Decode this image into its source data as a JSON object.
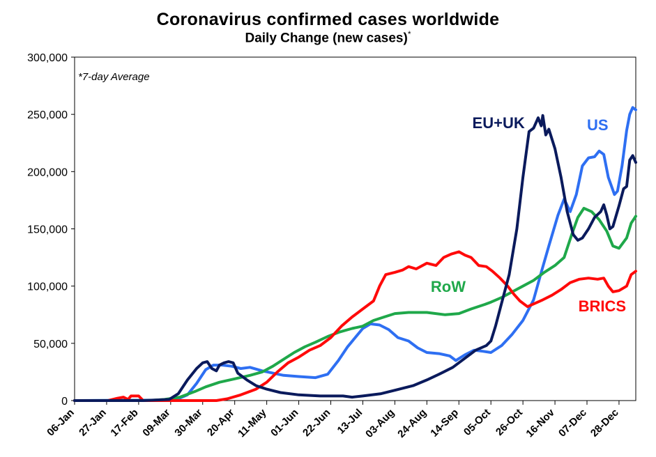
{
  "title": "Coronavirus confirmed cases worldwide",
  "subtitle": "Daily Change (new cases)",
  "subtitle_mark": "*",
  "note": "*7-day Average",
  "chart_data": {
    "type": "line",
    "title": "Coronavirus confirmed cases worldwide",
    "subtitle": "Daily Change (new cases)*",
    "annotation": "*7-day Average",
    "ylim": [
      0,
      300000
    ],
    "yticks": [
      0,
      50000,
      100000,
      150000,
      200000,
      250000,
      300000
    ],
    "ytick_labels": [
      "0",
      "50,000",
      "100,000",
      "150,000",
      "200,000",
      "250,000",
      "300,000"
    ],
    "xlim": [
      "2020-01-06",
      "2021-01-08"
    ],
    "xticks": [
      "2020-01-06",
      "2020-01-27",
      "2020-02-17",
      "2020-03-09",
      "2020-03-30",
      "2020-04-20",
      "2020-05-11",
      "2020-06-01",
      "2020-06-22",
      "2020-07-13",
      "2020-08-03",
      "2020-08-24",
      "2020-09-14",
      "2020-10-05",
      "2020-10-26",
      "2020-11-16",
      "2020-12-07",
      "2020-12-28"
    ],
    "xtick_labels": [
      "06-Jan",
      "27-Jan",
      "17-Feb",
      "09-Mar",
      "30-Mar",
      "20-Apr",
      "11-May",
      "01-Jun",
      "22-Jun",
      "13-Jul",
      "03-Aug",
      "24-Aug",
      "14-Sep",
      "05-Oct",
      "26-Oct",
      "16-Nov",
      "07-Dec",
      "28-Dec"
    ],
    "grid": false,
    "legend": "none (series labelled directly on chart)",
    "series": [
      {
        "name": "EU+UK",
        "color": "#0a1a5c",
        "points": [
          [
            "2020-01-06",
            0
          ],
          [
            "2020-02-20",
            0
          ],
          [
            "2020-03-08",
            1000
          ],
          [
            "2020-03-14",
            6000
          ],
          [
            "2020-03-20",
            18000
          ],
          [
            "2020-03-26",
            28000
          ],
          [
            "2020-03-30",
            33000
          ],
          [
            "2020-04-02",
            34000
          ],
          [
            "2020-04-05",
            28000
          ],
          [
            "2020-04-08",
            26000
          ],
          [
            "2020-04-10",
            31000
          ],
          [
            "2020-04-13",
            33000
          ],
          [
            "2020-04-16",
            34000
          ],
          [
            "2020-04-19",
            33000
          ],
          [
            "2020-04-22",
            24000
          ],
          [
            "2020-04-28",
            18000
          ],
          [
            "2020-05-04",
            13000
          ],
          [
            "2020-05-11",
            10000
          ],
          [
            "2020-05-20",
            7000
          ],
          [
            "2020-06-01",
            5000
          ],
          [
            "2020-06-15",
            4000
          ],
          [
            "2020-06-30",
            4000
          ],
          [
            "2020-07-06",
            3000
          ],
          [
            "2020-07-13",
            4000
          ],
          [
            "2020-07-25",
            6000
          ],
          [
            "2020-08-03",
            9000
          ],
          [
            "2020-08-15",
            13000
          ],
          [
            "2020-08-24",
            18000
          ],
          [
            "2020-09-01",
            23000
          ],
          [
            "2020-09-10",
            29000
          ],
          [
            "2020-09-18",
            37000
          ],
          [
            "2020-09-25",
            44000
          ],
          [
            "2020-10-02",
            48000
          ],
          [
            "2020-10-05",
            52000
          ],
          [
            "2020-10-08",
            65000
          ],
          [
            "2020-10-12",
            85000
          ],
          [
            "2020-10-17",
            110000
          ],
          [
            "2020-10-22",
            150000
          ],
          [
            "2020-10-26",
            195000
          ],
          [
            "2020-10-30",
            235000
          ],
          [
            "2020-11-02",
            238000
          ],
          [
            "2020-11-05",
            247000
          ],
          [
            "2020-11-07",
            240000
          ],
          [
            "2020-11-08",
            249000
          ],
          [
            "2020-11-10",
            232000
          ],
          [
            "2020-11-12",
            237000
          ],
          [
            "2020-11-16",
            220000
          ],
          [
            "2020-11-20",
            195000
          ],
          [
            "2020-11-24",
            165000
          ],
          [
            "2020-11-28",
            145000
          ],
          [
            "2020-12-01",
            140000
          ],
          [
            "2020-12-04",
            142000
          ],
          [
            "2020-12-08",
            150000
          ],
          [
            "2020-12-12",
            160000
          ],
          [
            "2020-12-16",
            165000
          ],
          [
            "2020-12-18",
            171000
          ],
          [
            "2020-12-20",
            162000
          ],
          [
            "2020-12-22",
            150000
          ],
          [
            "2020-12-24",
            152000
          ],
          [
            "2020-12-28",
            170000
          ],
          [
            "2020-12-31",
            185000
          ],
          [
            "2021-01-02",
            187000
          ],
          [
            "2021-01-04",
            210000
          ],
          [
            "2021-01-06",
            214000
          ],
          [
            "2021-01-08",
            208000
          ]
        ]
      },
      {
        "name": "US",
        "color": "#2e6ff2",
        "points": [
          [
            "2020-01-06",
            0
          ],
          [
            "2020-03-12",
            500
          ],
          [
            "2020-03-20",
            5000
          ],
          [
            "2020-03-26",
            15000
          ],
          [
            "2020-04-01",
            27000
          ],
          [
            "2020-04-06",
            31000
          ],
          [
            "2020-04-12",
            31000
          ],
          [
            "2020-04-18",
            30000
          ],
          [
            "2020-04-24",
            28000
          ],
          [
            "2020-04-30",
            29000
          ],
          [
            "2020-05-08",
            26000
          ],
          [
            "2020-05-15",
            24000
          ],
          [
            "2020-05-22",
            22000
          ],
          [
            "2020-06-01",
            21000
          ],
          [
            "2020-06-12",
            20000
          ],
          [
            "2020-06-20",
            23000
          ],
          [
            "2020-06-27",
            35000
          ],
          [
            "2020-07-03",
            47000
          ],
          [
            "2020-07-08",
            55000
          ],
          [
            "2020-07-13",
            63000
          ],
          [
            "2020-07-18",
            67000
          ],
          [
            "2020-07-24",
            66000
          ],
          [
            "2020-07-30",
            62000
          ],
          [
            "2020-08-05",
            55000
          ],
          [
            "2020-08-12",
            52000
          ],
          [
            "2020-08-18",
            46000
          ],
          [
            "2020-08-24",
            42000
          ],
          [
            "2020-09-01",
            41000
          ],
          [
            "2020-09-08",
            39000
          ],
          [
            "2020-09-12",
            35000
          ],
          [
            "2020-09-18",
            40000
          ],
          [
            "2020-09-24",
            44000
          ],
          [
            "2020-09-30",
            43000
          ],
          [
            "2020-10-05",
            42000
          ],
          [
            "2020-10-12",
            48000
          ],
          [
            "2020-10-19",
            58000
          ],
          [
            "2020-10-26",
            70000
          ],
          [
            "2020-11-02",
            88000
          ],
          [
            "2020-11-07",
            112000
          ],
          [
            "2020-11-12",
            135000
          ],
          [
            "2020-11-18",
            162000
          ],
          [
            "2020-11-22",
            176000
          ],
          [
            "2020-11-26",
            165000
          ],
          [
            "2020-11-30",
            180000
          ],
          [
            "2020-12-04",
            205000
          ],
          [
            "2020-12-08",
            212000
          ],
          [
            "2020-12-12",
            213000
          ],
          [
            "2020-12-15",
            218000
          ],
          [
            "2020-12-18",
            215000
          ],
          [
            "2020-12-21",
            195000
          ],
          [
            "2020-12-25",
            180000
          ],
          [
            "2020-12-27",
            183000
          ],
          [
            "2020-12-30",
            205000
          ],
          [
            "2021-01-02",
            236000
          ],
          [
            "2021-01-04",
            250000
          ],
          [
            "2021-01-06",
            256000
          ],
          [
            "2021-01-08",
            254000
          ]
        ]
      },
      {
        "name": "RoW",
        "color": "#1fa84a",
        "points": [
          [
            "2020-01-06",
            0
          ],
          [
            "2020-02-25",
            200
          ],
          [
            "2020-03-05",
            1000
          ],
          [
            "2020-03-15",
            3000
          ],
          [
            "2020-03-25",
            8000
          ],
          [
            "2020-04-01",
            12000
          ],
          [
            "2020-04-10",
            16000
          ],
          [
            "2020-04-20",
            19000
          ],
          [
            "2020-04-30",
            22000
          ],
          [
            "2020-05-08",
            25000
          ],
          [
            "2020-05-15",
            30000
          ],
          [
            "2020-05-22",
            36000
          ],
          [
            "2020-05-29",
            42000
          ],
          [
            "2020-06-05",
            47000
          ],
          [
            "2020-06-12",
            51000
          ],
          [
            "2020-06-20",
            56000
          ],
          [
            "2020-06-28",
            60000
          ],
          [
            "2020-07-06",
            63000
          ],
          [
            "2020-07-13",
            65000
          ],
          [
            "2020-07-20",
            70000
          ],
          [
            "2020-07-27",
            73000
          ],
          [
            "2020-08-03",
            76000
          ],
          [
            "2020-08-12",
            77000
          ],
          [
            "2020-08-24",
            77000
          ],
          [
            "2020-09-05",
            75000
          ],
          [
            "2020-09-14",
            76000
          ],
          [
            "2020-09-22",
            80000
          ],
          [
            "2020-10-01",
            84000
          ],
          [
            "2020-10-05",
            86000
          ],
          [
            "2020-10-12",
            90000
          ],
          [
            "2020-10-19",
            95000
          ],
          [
            "2020-10-26",
            100000
          ],
          [
            "2020-11-02",
            105000
          ],
          [
            "2020-11-09",
            112000
          ],
          [
            "2020-11-16",
            118000
          ],
          [
            "2020-11-22",
            125000
          ],
          [
            "2020-11-27",
            145000
          ],
          [
            "2020-12-01",
            160000
          ],
          [
            "2020-12-05",
            168000
          ],
          [
            "2020-12-10",
            165000
          ],
          [
            "2020-12-15",
            158000
          ],
          [
            "2020-12-20",
            148000
          ],
          [
            "2020-12-24",
            135000
          ],
          [
            "2020-12-28",
            133000
          ],
          [
            "2021-01-02",
            142000
          ],
          [
            "2021-01-05",
            155000
          ],
          [
            "2021-01-08",
            161000
          ]
        ]
      },
      {
        "name": "BRICS",
        "color": "#ff0a0a",
        "points": [
          [
            "2020-01-06",
            0
          ],
          [
            "2020-01-28",
            0
          ],
          [
            "2020-02-03",
            2000
          ],
          [
            "2020-02-07",
            3000
          ],
          [
            "2020-02-10",
            1000
          ],
          [
            "2020-02-12",
            4000
          ],
          [
            "2020-02-17",
            4000
          ],
          [
            "2020-02-20",
            0
          ],
          [
            "2020-04-08",
            0
          ],
          [
            "2020-04-15",
            1500
          ],
          [
            "2020-04-24",
            5000
          ],
          [
            "2020-05-04",
            10000
          ],
          [
            "2020-05-11",
            16000
          ],
          [
            "2020-05-18",
            25000
          ],
          [
            "2020-05-25",
            33000
          ],
          [
            "2020-06-01",
            38000
          ],
          [
            "2020-06-08",
            44000
          ],
          [
            "2020-06-15",
            48000
          ],
          [
            "2020-06-22",
            55000
          ],
          [
            "2020-06-29",
            65000
          ],
          [
            "2020-07-06",
            73000
          ],
          [
            "2020-07-13",
            80000
          ],
          [
            "2020-07-20",
            87000
          ],
          [
            "2020-07-24",
            100000
          ],
          [
            "2020-07-28",
            110000
          ],
          [
            "2020-08-03",
            112000
          ],
          [
            "2020-08-08",
            114000
          ],
          [
            "2020-08-12",
            117000
          ],
          [
            "2020-08-17",
            115000
          ],
          [
            "2020-08-24",
            120000
          ],
          [
            "2020-08-30",
            118000
          ],
          [
            "2020-09-04",
            125000
          ],
          [
            "2020-09-09",
            128000
          ],
          [
            "2020-09-14",
            130000
          ],
          [
            "2020-09-18",
            127000
          ],
          [
            "2020-09-22",
            125000
          ],
          [
            "2020-09-27",
            118000
          ],
          [
            "2020-10-02",
            117000
          ],
          [
            "2020-10-06",
            113000
          ],
          [
            "2020-10-11",
            107000
          ],
          [
            "2020-10-16",
            100000
          ],
          [
            "2020-10-20",
            93000
          ],
          [
            "2020-10-24",
            87000
          ],
          [
            "2020-10-29",
            82000
          ],
          [
            "2020-11-03",
            85000
          ],
          [
            "2020-11-08",
            88000
          ],
          [
            "2020-11-14",
            92000
          ],
          [
            "2020-11-20",
            97000
          ],
          [
            "2020-11-26",
            103000
          ],
          [
            "2020-12-02",
            106000
          ],
          [
            "2020-12-08",
            107000
          ],
          [
            "2020-12-14",
            106000
          ],
          [
            "2020-12-18",
            107000
          ],
          [
            "2020-12-21",
            100000
          ],
          [
            "2020-12-24",
            95000
          ],
          [
            "2020-12-28",
            96000
          ],
          [
            "2021-01-02",
            100000
          ],
          [
            "2021-01-05",
            110000
          ],
          [
            "2021-01-08",
            113000
          ]
        ]
      }
    ]
  }
}
